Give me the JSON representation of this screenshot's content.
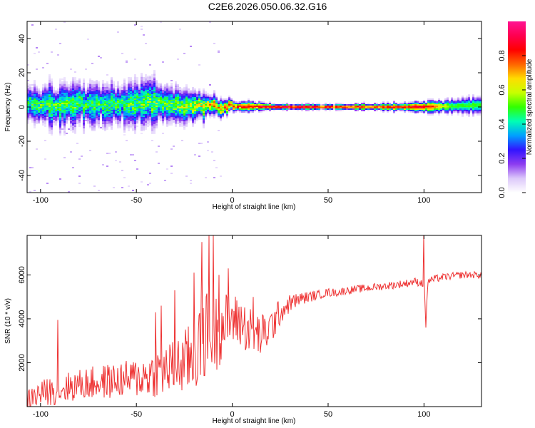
{
  "figure": {
    "title": "C2E6.2026.050.06.32.G16"
  },
  "chart_data": [
    {
      "type": "heatmap",
      "title": "",
      "xlabel": "Height of straight line (km)",
      "ylabel": "Frequency (Hz)",
      "xlim": [
        -107,
        130
      ],
      "ylim": [
        -50,
        50
      ],
      "xticks": [
        -100,
        -50,
        0,
        50,
        100
      ],
      "yticks": [
        -40,
        -20,
        0,
        20,
        40
      ],
      "grid": false,
      "colorbar": {
        "label": "Normalized spectral amplitude",
        "range": [
          0,
          1
        ],
        "ticks": [
          0.0,
          0.2,
          0.4,
          0.6,
          0.8
        ],
        "colormap": [
          "#ffffff",
          "#dcc8fa",
          "#8c3cf0",
          "#3214ff",
          "#00a0ff",
          "#00ffb4",
          "#32ff00",
          "#c8ff00",
          "#ffdc00",
          "#ff6400",
          "#ff0000",
          "#ff0050",
          "#ff1493"
        ]
      },
      "ridge": [
        {
          "x": -105,
          "f": 1.5,
          "amp": 0.45,
          "spread": 6
        },
        {
          "x": -90,
          "f": 0.5,
          "amp": 0.5,
          "spread": 6
        },
        {
          "x": -75,
          "f": 2.0,
          "amp": 0.45,
          "spread": 6
        },
        {
          "x": -60,
          "f": 1.0,
          "amp": 0.45,
          "spread": 6
        },
        {
          "x": -45,
          "f": 3.0,
          "amp": 0.5,
          "spread": 7
        },
        {
          "x": -30,
          "f": 1.0,
          "amp": 0.5,
          "spread": 5
        },
        {
          "x": -15,
          "f": 0.5,
          "amp": 0.6,
          "spread": 4
        },
        {
          "x": 0,
          "f": 0.0,
          "amp": 0.8,
          "spread": 1.5
        },
        {
          "x": 10,
          "f": 0.3,
          "amp": 0.85,
          "spread": 1.5
        },
        {
          "x": 25,
          "f": 0.0,
          "amp": 0.95,
          "spread": 0.8
        },
        {
          "x": 50,
          "f": 0.0,
          "amp": 0.9,
          "spread": 0.8
        },
        {
          "x": 75,
          "f": 0.0,
          "amp": 0.8,
          "spread": 1.0
        },
        {
          "x": 100,
          "f": 0.0,
          "amp": 0.9,
          "spread": 1.5
        },
        {
          "x": 115,
          "f": 0.5,
          "amp": 0.5,
          "spread": 2.0
        },
        {
          "x": 130,
          "f": 1.0,
          "amp": 0.5,
          "spread": 2.5
        }
      ]
    },
    {
      "type": "line",
      "title": "",
      "xlabel": "Height of straight line (km)",
      "ylabel": "SNR (10 * v/v)",
      "xlim": [
        -107,
        130
      ],
      "ylim": [
        0,
        7800
      ],
      "xticks": [
        -100,
        -50,
        0,
        50,
        100
      ],
      "yticks": [
        2000,
        4000,
        6000
      ],
      "grid": false,
      "series": [
        {
          "color": "#ee3333",
          "x": [
            -107,
            -100,
            -90,
            -80,
            -70,
            -60,
            -50,
            -40,
            -30,
            -25,
            -20,
            -15,
            -12,
            -8,
            -5,
            0,
            5,
            10,
            15,
            20,
            25,
            30,
            35,
            40,
            45,
            50,
            55,
            60,
            70,
            80,
            90,
            95,
            98,
            100,
            101,
            102,
            105,
            110,
            120,
            130
          ],
          "y": [
            300,
            600,
            800,
            1000,
            1100,
            1200,
            1300,
            1500,
            1800,
            2000,
            2300,
            3200,
            3500,
            3400,
            3700,
            4000,
            3800,
            3400,
            3200,
            3600,
            4300,
            4700,
            4900,
            5000,
            5100,
            5200,
            5200,
            5300,
            5400,
            5500,
            5600,
            5700,
            5650,
            5600,
            4000,
            5700,
            5800,
            5900,
            6000,
            6000
          ],
          "noise": [
            500,
            600,
            700,
            700,
            800,
            800,
            900,
            1100,
            1300,
            1500,
            1800,
            2000,
            2000,
            1800,
            1500,
            1200,
            1200,
            1100,
            1000,
            900,
            600,
            400,
            300,
            250,
            200,
            200,
            180,
            180,
            180,
            180,
            180,
            180,
            180,
            180,
            180,
            180,
            180,
            160,
            160,
            160
          ],
          "spikes": [
            [
              -91,
              3950
            ],
            [
              -40,
              4300
            ],
            [
              -37,
              4600
            ],
            [
              -30,
              5300
            ],
            [
              -20,
              6100
            ],
            [
              -16,
              7500
            ],
            [
              -12,
              7900
            ],
            [
              -10,
              7800
            ],
            [
              -7,
              6000
            ],
            [
              -2,
              6300
            ],
            [
              11,
              5000
            ],
            [
              100,
              7900
            ],
            [
              101,
              3600
            ]
          ]
        }
      ]
    }
  ]
}
